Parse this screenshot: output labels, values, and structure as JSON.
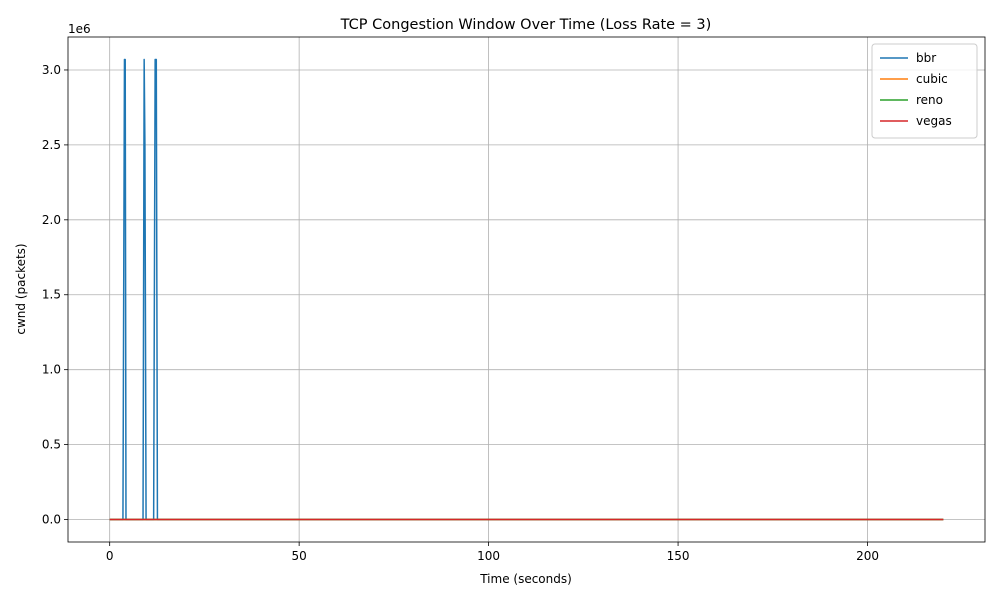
{
  "chart_data": {
    "type": "line",
    "title": "TCP Congestion Window Over Time (Loss Rate = 3)",
    "xlabel": "Time (seconds)",
    "ylabel": "cwnd (packets)",
    "y_offset_label": "1e6",
    "xlim": [
      -11,
      231
    ],
    "ylim": [
      -150000,
      3220000
    ],
    "y_scale_factor": 1000000,
    "xticks": [
      0,
      50,
      100,
      150,
      200
    ],
    "yticks": [
      0.0,
      0.5,
      1.0,
      1.5,
      2.0,
      2.5,
      3.0
    ],
    "grid": true,
    "legend_position": "top-right",
    "series": [
      {
        "name": "bbr",
        "color": "#1f77b4",
        "x": [
          0,
          3.5,
          3.9,
          4.1,
          4.3,
          4.5,
          8.8,
          9.1,
          9.3,
          9.6,
          10.0,
          11.6,
          12.0,
          12.3,
          12.6,
          13,
          220
        ],
        "y": [
          0,
          0,
          3070000,
          3070000,
          0,
          0,
          0,
          3070000,
          2500000,
          0,
          0,
          0,
          3070000,
          3070000,
          0,
          0,
          0
        ]
      },
      {
        "name": "cubic",
        "color": "#ff7f0e",
        "x": [
          0,
          220
        ],
        "y": [
          200,
          200
        ]
      },
      {
        "name": "reno",
        "color": "#2ca02c",
        "x": [
          0,
          220
        ],
        "y": [
          150,
          150
        ]
      },
      {
        "name": "vegas",
        "color": "#d62728",
        "x": [
          0,
          205,
          220
        ],
        "y": [
          100,
          100,
          40
        ]
      }
    ]
  }
}
